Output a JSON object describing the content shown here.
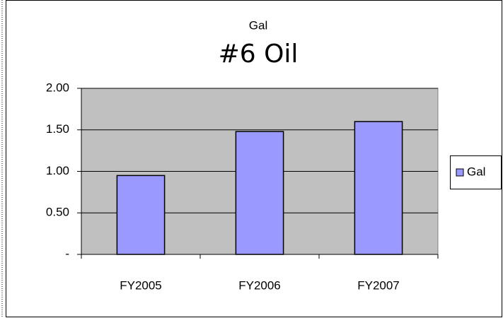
{
  "chart_data": {
    "type": "bar",
    "subtitle": "Gal",
    "title": "#6 Oil",
    "categories": [
      "FY2005",
      "FY2006",
      "FY2007"
    ],
    "series": [
      {
        "name": "Gal",
        "color": "#9999ff",
        "values": [
          0.95,
          1.48,
          1.6
        ]
      }
    ],
    "ylim": [
      0,
      2
    ],
    "yticks": [
      {
        "value": 0,
        "label": "-"
      },
      {
        "value": 0.5,
        "label": "0.50"
      },
      {
        "value": 1,
        "label": "1.00"
      },
      {
        "value": 1.5,
        "label": "1.50"
      },
      {
        "value": 2,
        "label": "2.00"
      }
    ],
    "grid": true,
    "legend": "right"
  }
}
